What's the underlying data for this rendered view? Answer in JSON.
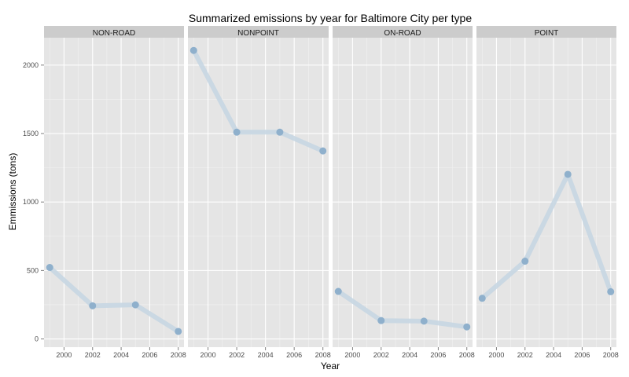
{
  "chart_data": {
    "type": "line",
    "title": "Summarized emissions by year for Baltimore City per type",
    "xlabel": "Year",
    "ylabel": "Emmissions (tons)",
    "xlim": [
      1998.6,
      2008.4
    ],
    "ylim": [
      -60,
      2200
    ],
    "x_ticks": [
      2000,
      2002,
      2004,
      2006,
      2008
    ],
    "y_ticks": [
      0,
      500,
      1000,
      1500,
      2000
    ],
    "grid": true,
    "legend": "none",
    "colors": {
      "panel_bg": "#e5e5e5",
      "grid_major": "#ffffff",
      "grid_minor": "#f2f2f2",
      "strip_bg": "#cccccc",
      "line": "#c7d6e2",
      "point": "#8fb0cc"
    },
    "x": [
      1999,
      2002,
      2005,
      2008
    ],
    "facets": [
      {
        "name": "NON-ROAD",
        "values": [
          522,
          242,
          249,
          55
        ]
      },
      {
        "name": "NONPOINT",
        "values": [
          2107,
          1510,
          1510,
          1373
        ]
      },
      {
        "name": "ON-ROAD",
        "values": [
          347,
          134,
          130,
          88
        ]
      },
      {
        "name": "POINT",
        "values": [
          297,
          568,
          1202,
          345
        ]
      }
    ]
  }
}
